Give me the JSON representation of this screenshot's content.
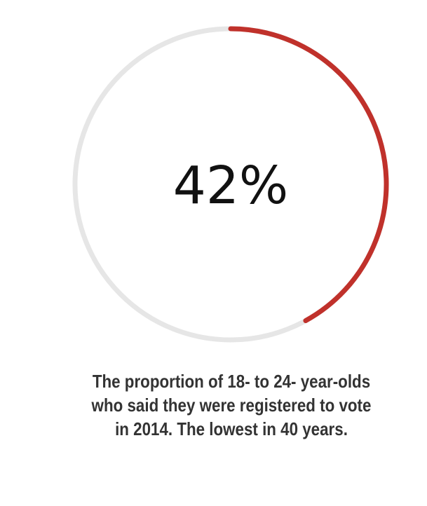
{
  "chart_data": {
    "type": "donut",
    "value_label": "42%",
    "value": 42,
    "max": 100,
    "caption": "The proportion of 18- to 24- year-olds who said they were registered to vote in 2014. The lowest in 40 years."
  },
  "colors": {
    "track": "#e6e6e6",
    "progress": "#c0312b",
    "value_text": "#111111",
    "caption_text": "#333333"
  }
}
